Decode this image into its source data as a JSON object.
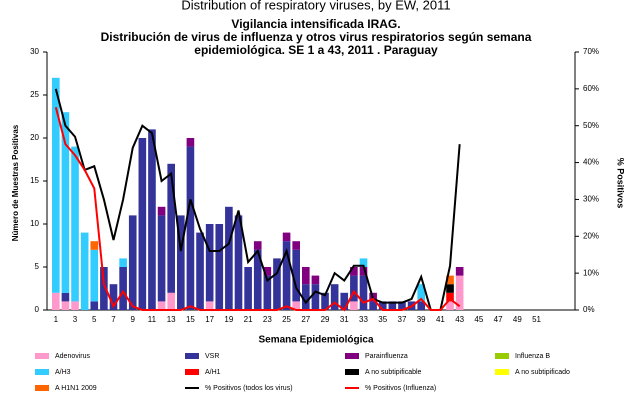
{
  "chart_data": {
    "type": "bar",
    "suptitle": "Distribution of respiratory viruses, by EW, 2011",
    "title": [
      "Vigilancia intensificada IRAG.",
      "Distribución de virus de influenza y otros virus respiratorios según semana",
      "epidemiológica. SE 1 a 43, 2011 . Paraguay"
    ],
    "xlabel": "Semana Epidemiológica",
    "ylabel": "Número de Muestras Positivas",
    "y2label": "% Positivos",
    "categories": [
      "1",
      null,
      "3",
      null,
      "5",
      null,
      "7",
      null,
      "9",
      null,
      "11",
      null,
      "13",
      null,
      "15",
      null,
      "17",
      null,
      "19",
      null,
      "21",
      null,
      "23",
      null,
      "25",
      null,
      "27",
      null,
      "29",
      null,
      "31",
      null,
      "33",
      null,
      "35",
      null,
      "37",
      null,
      "39",
      null,
      "41",
      null,
      "43",
      null,
      "45",
      null,
      "47",
      null,
      "49",
      null,
      "51",
      null
    ],
    "ylim": [
      0,
      30
    ],
    "yticks": [
      0,
      5,
      10,
      15,
      20,
      25,
      30
    ],
    "y2lim": [
      0,
      70
    ],
    "y2ticks": [
      {
        "value": 0,
        "label": "0%"
      },
      {
        "value": 10,
        "label": "10%"
      },
      {
        "value": 20,
        "label": "20%"
      },
      {
        "value": 30,
        "label": "30%"
      },
      {
        "value": 40,
        "label": "40%"
      },
      {
        "value": 50,
        "label": "50%"
      },
      {
        "value": 60,
        "label": "60%"
      },
      {
        "value": 70,
        "label": "70%"
      }
    ],
    "series": [
      {
        "name": "Adenovirus",
        "type": "bar",
        "color": "#ff99cc",
        "values": [
          2,
          1,
          1,
          0,
          0,
          0,
          0,
          0,
          0,
          0,
          0,
          1,
          2,
          0,
          0,
          0,
          1,
          0,
          0,
          0,
          0,
          0,
          0,
          0,
          0,
          1,
          0,
          0,
          0,
          0,
          0,
          1,
          0,
          0,
          0,
          0,
          0,
          0,
          0,
          0,
          0,
          1,
          4,
          0,
          0,
          0,
          0,
          0,
          0,
          0,
          0,
          0
        ]
      },
      {
        "name": "VSR",
        "type": "bar",
        "color": "#333399",
        "values": [
          0,
          1,
          0,
          0,
          1,
          5,
          3,
          5,
          11,
          20,
          21,
          10,
          15,
          11,
          19,
          9,
          9,
          10,
          12,
          11,
          5,
          7,
          4,
          6,
          8,
          6,
          3,
          3,
          2,
          3,
          2,
          3,
          4,
          1,
          1,
          1,
          1,
          1,
          1,
          0,
          0,
          0,
          0,
          0,
          0,
          0,
          0,
          0,
          0,
          0,
          0,
          0
        ]
      },
      {
        "name": "Parainfluenza",
        "type": "bar",
        "color": "#800080",
        "values": [
          0,
          0,
          0,
          0,
          0,
          0,
          0,
          0,
          0,
          0,
          0,
          1,
          0,
          0,
          1,
          0,
          0,
          0,
          0,
          0,
          0,
          1,
          1,
          0,
          1,
          1,
          2,
          1,
          0,
          0,
          0,
          1,
          1,
          1,
          0,
          0,
          0,
          0,
          0,
          0,
          0,
          0,
          1,
          0,
          0,
          0,
          0,
          0,
          0,
          0,
          0,
          0
        ]
      },
      {
        "name": "Influenza  B",
        "type": "bar",
        "color": "#99cc00",
        "values": [
          0,
          0,
          0,
          0,
          0,
          0,
          0,
          0,
          0,
          0,
          0,
          0,
          0,
          0,
          0,
          0,
          0,
          0,
          0,
          0,
          0,
          0,
          0,
          0,
          0,
          0,
          0,
          0,
          0,
          0,
          0,
          0,
          0,
          0,
          0,
          0,
          0,
          0,
          0,
          0,
          0,
          0,
          0,
          0,
          0,
          0,
          0,
          0,
          0,
          0,
          0,
          0
        ]
      },
      {
        "name": "A/H3",
        "type": "bar",
        "color": "#33ccff",
        "values": [
          25,
          21,
          18,
          9,
          6,
          0,
          0,
          1,
          0,
          0,
          0,
          0,
          0,
          0,
          0,
          0,
          0,
          0,
          0,
          0,
          0,
          0,
          0,
          0,
          0,
          0,
          0,
          0,
          0,
          0,
          0,
          0,
          1,
          0,
          0,
          0,
          0,
          0,
          2,
          0,
          0,
          0,
          0,
          0,
          0,
          0,
          0,
          0,
          0,
          0,
          0,
          0
        ]
      },
      {
        "name": "A/H1",
        "type": "bar",
        "color": "#ff0000",
        "values": [
          0,
          0,
          0,
          0,
          0,
          0,
          0,
          0,
          0,
          0,
          0,
          0,
          0,
          0,
          0,
          0,
          0,
          0,
          0,
          0,
          0,
          0,
          0,
          0,
          0,
          0,
          0,
          0,
          0,
          0,
          0,
          0,
          0,
          0,
          0,
          0,
          0,
          0,
          0,
          0,
          0,
          1,
          0,
          0,
          0,
          0,
          0,
          0,
          0,
          0,
          0,
          0
        ]
      },
      {
        "name": "A no subtipificable",
        "type": "bar",
        "color": "#000000",
        "values": [
          0,
          0,
          0,
          0,
          0,
          0,
          0,
          0,
          0,
          0,
          0,
          0,
          0,
          0,
          0,
          0,
          0,
          0,
          0,
          0,
          0,
          0,
          0,
          0,
          0,
          0,
          0,
          0,
          0,
          0,
          0,
          0,
          0,
          0,
          0,
          0,
          0,
          0,
          0,
          0,
          0,
          1,
          0,
          0,
          0,
          0,
          0,
          0,
          0,
          0,
          0,
          0
        ]
      },
      {
        "name": "A no subtipificado",
        "type": "bar",
        "color": "#ffff00",
        "values": [
          0,
          0,
          0,
          0,
          0,
          0,
          0,
          0,
          0,
          0,
          0,
          0,
          0,
          0,
          0,
          0,
          0,
          0,
          0,
          0,
          0,
          0,
          0,
          0,
          0,
          0,
          0,
          0,
          0,
          0,
          0,
          0,
          0,
          0,
          0,
          0,
          0,
          0,
          0,
          0,
          0,
          0,
          0,
          0,
          0,
          0,
          0,
          0,
          0,
          0,
          0,
          0
        ]
      },
      {
        "name": "A H1N1 2009",
        "type": "bar",
        "color": "#ff6600",
        "values": [
          0,
          0,
          0,
          0,
          1,
          0,
          0,
          0,
          0,
          0,
          0,
          0,
          0,
          0,
          0,
          0,
          0,
          0,
          0,
          0,
          0,
          0,
          0,
          0,
          0,
          0,
          0,
          0,
          0,
          0,
          0,
          0,
          0,
          0,
          0,
          0,
          0,
          0,
          0,
          0,
          0,
          1,
          0,
          0,
          0,
          0,
          0,
          0,
          0,
          0,
          0,
          0
        ]
      },
      {
        "name": "% Positivos (todos los virus)",
        "type": "line",
        "axis": "y2",
        "color": "#000000",
        "values": [
          60,
          50,
          47,
          38,
          39,
          30,
          19,
          30,
          44,
          50,
          48,
          35,
          37,
          16,
          30,
          22,
          16,
          16,
          18,
          27,
          13,
          16,
          8,
          10,
          16,
          6,
          2,
          5,
          4,
          10,
          8,
          12,
          12,
          3,
          2,
          2,
          2,
          3,
          9,
          0,
          0,
          12,
          45,
          null,
          null,
          null,
          null,
          null,
          null,
          null,
          null,
          null
        ]
      },
      {
        "name": "% Positivos (Influenza)",
        "type": "line",
        "axis": "y2",
        "color": "#ff0000",
        "values": [
          55,
          45,
          42,
          38,
          33,
          7,
          1,
          5,
          1,
          0,
          0,
          0,
          0,
          0,
          1,
          0,
          0,
          0,
          0,
          0,
          0,
          0,
          0,
          0,
          1,
          0,
          0,
          0,
          0,
          2,
          0,
          5,
          2,
          3,
          0,
          0,
          0,
          1,
          3,
          0,
          0,
          3,
          1,
          null,
          null,
          null,
          null,
          null,
          null,
          null,
          null,
          null
        ]
      }
    ]
  }
}
